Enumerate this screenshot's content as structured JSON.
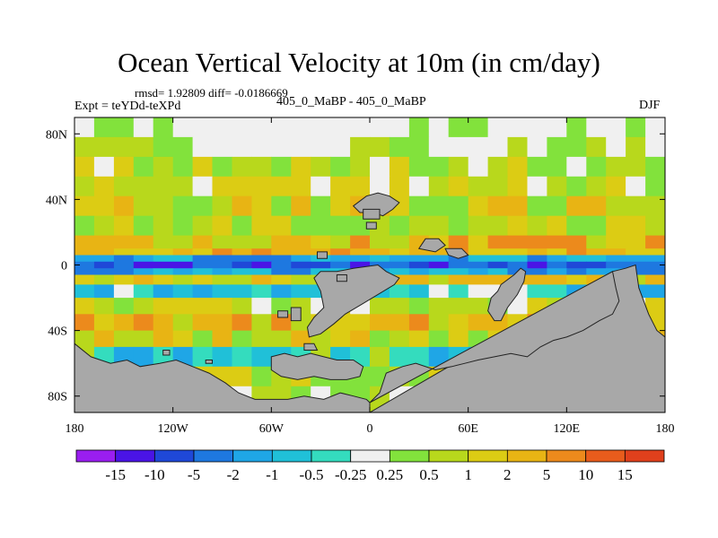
{
  "chart_data": {
    "type": "heatmap",
    "title": "Ocean Vertical Velocity at 10m (in cm/day)",
    "stats": "rmsd= 1.92809  diff= -0.0186669",
    "expt": "Expt = teYDd-teXPd",
    "subtitle": "405_0_MaBP - 405_0_MaBP",
    "season": "DJF",
    "xlim": [
      -180,
      180
    ],
    "ylim": [
      -90,
      90
    ],
    "x_ticks": [
      {
        "value": -180,
        "label": "180"
      },
      {
        "value": -120,
        "label": "120W"
      },
      {
        "value": -60,
        "label": "60W"
      },
      {
        "value": 0,
        "label": "0"
      },
      {
        "value": 60,
        "label": "60E"
      },
      {
        "value": 120,
        "label": "120E"
      },
      {
        "value": 180,
        "label": "180"
      }
    ],
    "y_ticks": [
      {
        "value": 80,
        "label": "80N"
      },
      {
        "value": 40,
        "label": "40N"
      },
      {
        "value": 0,
        "label": "0"
      },
      {
        "value": -40,
        "label": "40S"
      },
      {
        "value": -80,
        "label": "80S"
      }
    ],
    "colorbar": {
      "labels": [
        "-15",
        "-10",
        "-5",
        "-2",
        "-1",
        "-0.5",
        "-0.25",
        "0.25",
        "0.5",
        "1",
        "2",
        "5",
        "10",
        "15"
      ],
      "colors": [
        "#9a1ef0",
        "#4a14e6",
        "#1f48d8",
        "#1e78e0",
        "#1fa6e6",
        "#20c0d8",
        "#34dcbe",
        "#f0f0f0",
        "#82e23c",
        "#b8d81c",
        "#dccc14",
        "#e8b414",
        "#ec8a1c",
        "#e85c1c",
        "#e0401c"
      ]
    },
    "land_color": "#a8a8a8",
    "lat_bands": [
      {
        "lat_max": 90,
        "lat_min": 78,
        "levels": [
          7,
          7,
          8
        ]
      },
      {
        "lat_max": 78,
        "lat_min": 66,
        "levels": [
          7,
          8,
          9,
          7
        ]
      },
      {
        "lat_max": 66,
        "lat_min": 54,
        "levels": [
          8,
          9,
          7,
          10
        ]
      },
      {
        "lat_max": 54,
        "lat_min": 42,
        "levels": [
          9,
          8,
          10,
          7
        ]
      },
      {
        "lat_max": 42,
        "lat_min": 30,
        "levels": [
          9,
          10,
          8,
          11
        ]
      },
      {
        "lat_max": 30,
        "lat_min": 18,
        "levels": [
          8,
          9,
          10
        ]
      },
      {
        "lat_max": 18,
        "lat_min": 10,
        "levels": [
          10,
          11,
          9,
          12
        ]
      },
      {
        "lat_max": 10,
        "lat_min": 6,
        "levels": [
          11,
          12,
          10
        ]
      },
      {
        "lat_max": 6,
        "lat_min": 2,
        "levels": [
          4,
          3,
          5
        ]
      },
      {
        "lat_max": 2,
        "lat_min": -2,
        "levels": [
          2,
          1,
          3
        ]
      },
      {
        "lat_max": -2,
        "lat_min": -6,
        "levels": [
          4,
          5,
          3
        ]
      },
      {
        "lat_max": -6,
        "lat_min": -12,
        "levels": [
          10,
          9,
          11
        ]
      },
      {
        "lat_max": -12,
        "lat_min": -20,
        "levels": [
          5,
          6,
          4,
          7
        ]
      },
      {
        "lat_max": -20,
        "lat_min": -30,
        "levels": [
          9,
          10,
          8,
          7
        ]
      },
      {
        "lat_max": -30,
        "lat_min": -40,
        "levels": [
          10,
          11,
          9,
          12
        ]
      },
      {
        "lat_max": -40,
        "lat_min": -50,
        "levels": [
          9,
          10,
          8,
          11
        ]
      },
      {
        "lat_max": -50,
        "lat_min": -62,
        "levels": [
          5,
          4,
          6,
          9
        ]
      },
      {
        "lat_max": -62,
        "lat_min": -74,
        "levels": [
          9,
          10,
          8
        ]
      },
      {
        "lat_max": -74,
        "lat_min": -90,
        "levels": [
          8,
          9,
          7
        ]
      }
    ],
    "land_masses": [
      {
        "name": "north-africa-eurasia",
        "points": [
          [
            -10,
            36
          ],
          [
            -2,
            42
          ],
          [
            5,
            44
          ],
          [
            12,
            42
          ],
          [
            18,
            38
          ],
          [
            14,
            34
          ],
          [
            8,
            30
          ],
          [
            2,
            32
          ],
          [
            -6,
            32
          ]
        ]
      },
      {
        "name": "caspian-block",
        "points": [
          [
            -4,
            34
          ],
          [
            6,
            34
          ],
          [
            6,
            28
          ],
          [
            -4,
            28
          ]
        ]
      },
      {
        "name": "arabia",
        "points": [
          [
            30,
            10
          ],
          [
            40,
            8
          ],
          [
            46,
            12
          ],
          [
            42,
            16
          ],
          [
            34,
            16
          ]
        ]
      },
      {
        "name": "india",
        "points": [
          [
            46,
            10
          ],
          [
            56,
            10
          ],
          [
            60,
            6
          ],
          [
            54,
            4
          ],
          [
            48,
            6
          ]
        ]
      },
      {
        "name": "south-america",
        "points": [
          [
            -30,
            -4
          ],
          [
            -20,
            -4
          ],
          [
            -10,
            -2
          ],
          [
            5,
            0
          ],
          [
            10,
            -4
          ],
          [
            18,
            -8
          ],
          [
            15,
            -12
          ],
          [
            5,
            -18
          ],
          [
            -5,
            -24
          ],
          [
            -15,
            -30
          ],
          [
            -22,
            -36
          ],
          [
            -30,
            -42
          ],
          [
            -37,
            -44
          ],
          [
            -38,
            -38
          ],
          [
            -34,
            -32
          ],
          [
            -28,
            -26
          ],
          [
            -30,
            -16
          ],
          [
            -34,
            -8
          ]
        ]
      },
      {
        "name": "patagonia",
        "points": [
          [
            -40,
            -48
          ],
          [
            -34,
            -48
          ],
          [
            -32,
            -52
          ],
          [
            -40,
            -52
          ]
        ]
      },
      {
        "name": "africa-south",
        "points": [
          [
            -48,
            -26
          ],
          [
            -42,
            -26
          ],
          [
            -42,
            -34
          ],
          [
            -48,
            -34
          ]
        ]
      },
      {
        "name": "australia",
        "points": [
          [
            80,
            -12
          ],
          [
            88,
            -6
          ],
          [
            92,
            -2
          ],
          [
            95,
            -4
          ],
          [
            94,
            -10
          ],
          [
            90,
            -18
          ],
          [
            84,
            -26
          ],
          [
            80,
            -34
          ],
          [
            76,
            -34
          ],
          [
            72,
            -28
          ],
          [
            74,
            -20
          ],
          [
            78,
            -16
          ]
        ]
      },
      {
        "name": "south-pacific-landmass",
        "points": [
          [
            148,
            -4
          ],
          [
            156,
            -2
          ],
          [
            162,
            0
          ],
          [
            164,
            -14
          ],
          [
            170,
            -30
          ],
          [
            175,
            -40
          ],
          [
            180,
            -44
          ],
          [
            180,
            -90
          ],
          [
            -180,
            -90
          ],
          [
            -180,
            -48
          ],
          [
            -170,
            -56
          ],
          [
            -158,
            -60
          ],
          [
            -148,
            -58
          ],
          [
            -140,
            -62
          ],
          [
            -128,
            -60
          ],
          [
            -118,
            -58
          ],
          [
            -108,
            -62
          ],
          [
            -98,
            -66
          ],
          [
            -88,
            -72
          ],
          [
            -80,
            -78
          ],
          [
            -70,
            -82
          ],
          [
            -50,
            -82
          ],
          [
            -40,
            -80
          ],
          [
            -28,
            -82
          ],
          [
            -18,
            -78
          ],
          [
            -10,
            -80
          ],
          [
            -2,
            -82
          ],
          [
            0,
            -84
          ],
          [
            0,
            -90
          ]
        ]
      },
      {
        "name": "antarctic-east",
        "points": [
          [
            0,
            -84
          ],
          [
            6,
            -78
          ],
          [
            10,
            -66
          ],
          [
            20,
            -62
          ],
          [
            28,
            -60
          ],
          [
            40,
            -64
          ],
          [
            50,
            -62
          ],
          [
            58,
            -60
          ],
          [
            66,
            -58
          ],
          [
            76,
            -56
          ],
          [
            86,
            -54
          ],
          [
            96,
            -56
          ],
          [
            104,
            -50
          ],
          [
            112,
            -46
          ],
          [
            120,
            -44
          ],
          [
            130,
            -40
          ],
          [
            140,
            -34
          ],
          [
            148,
            -30
          ],
          [
            152,
            -22
          ],
          [
            150,
            -14
          ],
          [
            148,
            -4
          ]
        ]
      },
      {
        "name": "atlantic-shelf",
        "points": [
          [
            -60,
            -56
          ],
          [
            -52,
            -54
          ],
          [
            -44,
            -56
          ],
          [
            -36,
            -54
          ],
          [
            -28,
            -56
          ],
          [
            -20,
            -58
          ],
          [
            -10,
            -58
          ],
          [
            -4,
            -62
          ],
          [
            -6,
            -68
          ],
          [
            -14,
            -70
          ],
          [
            -24,
            -70
          ],
          [
            -34,
            -68
          ],
          [
            -44,
            -70
          ],
          [
            -54,
            -68
          ],
          [
            -60,
            -64
          ]
        ]
      },
      {
        "name": "small-isle-1",
        "points": [
          [
            -126,
            -52
          ],
          [
            -122,
            -52
          ],
          [
            -122,
            -55
          ],
          [
            -126,
            -55
          ]
        ]
      },
      {
        "name": "small-isle-2",
        "points": [
          [
            -100,
            -58
          ],
          [
            -96,
            -58
          ],
          [
            -96,
            -60
          ],
          [
            -100,
            -60
          ]
        ]
      },
      {
        "name": "small-isle-3",
        "points": [
          [
            -56,
            -28
          ],
          [
            -50,
            -28
          ],
          [
            -50,
            -32
          ],
          [
            -56,
            -32
          ]
        ]
      },
      {
        "name": "small-isle-4",
        "points": [
          [
            -32,
            8
          ],
          [
            -26,
            8
          ],
          [
            -26,
            4
          ],
          [
            -32,
            4
          ]
        ]
      },
      {
        "name": "small-isle-5",
        "points": [
          [
            -20,
            -6
          ],
          [
            -14,
            -6
          ],
          [
            -14,
            -10
          ],
          [
            -20,
            -10
          ]
        ]
      },
      {
        "name": "small-isle-6",
        "points": [
          [
            -2,
            26
          ],
          [
            4,
            26
          ],
          [
            4,
            22
          ],
          [
            -2,
            22
          ]
        ]
      }
    ]
  }
}
